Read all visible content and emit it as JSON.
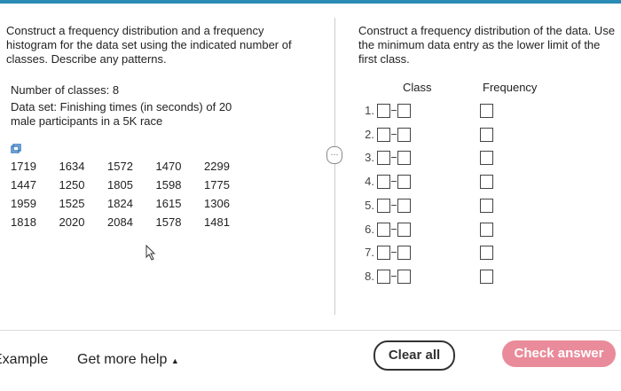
{
  "left": {
    "instructions": "Construct a frequency distribution and a frequency histogram for the data set using the indicated number of classes. Describe any patterns.",
    "classes": "Number of classes: 8",
    "dataset": "Data set: Finishing times (in seconds) of 20 male participants in a 5K race",
    "data": [
      [
        1719,
        1634,
        1572,
        1470,
        2299
      ],
      [
        1447,
        1250,
        1805,
        1598,
        1775
      ],
      [
        1959,
        1525,
        1824,
        1615,
        1306
      ],
      [
        1818,
        2020,
        2084,
        1578,
        1481
      ]
    ]
  },
  "right": {
    "instructions": "Construct a frequency distribution of the data. Use the minimum data entry as the lower limit of the first class.",
    "class_header": "Class",
    "frequency_header": "Frequency",
    "rows": [
      "1.",
      "2.",
      "3.",
      "4.",
      "5.",
      "6.",
      "7.",
      "8."
    ]
  },
  "footer": {
    "example": "Example",
    "help": "Get more help",
    "clear": "Clear all",
    "check": "Check answer"
  }
}
